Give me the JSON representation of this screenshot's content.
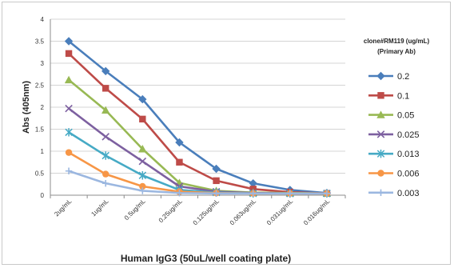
{
  "chart_data": {
    "type": "line",
    "title": "",
    "xlabel": "Human IgG3 (50uL/well coating plate)",
    "ylabel": "Abs (405nm)",
    "categories": [
      "2ug/mL",
      "1ug/mL",
      "0.5ug/mL",
      "0.25ug/mL",
      "0.125ug/mL",
      "0.063ug/mL",
      "0.031ug/mL",
      "0.016ug/mL"
    ],
    "ylim": [
      0,
      4
    ],
    "yticks": [
      "0",
      "0.5",
      "1",
      "1.5",
      "2",
      "2.5",
      "3",
      "3.5",
      "4"
    ],
    "grid": true,
    "legend_title_lines": [
      "clone#RM119 (ug/mL)",
      "(Primary Ab)"
    ],
    "legend_position": "right",
    "series": [
      {
        "name": "0.2",
        "color": "#4a7ebb",
        "marker": "diamond",
        "values": [
          3.5,
          2.82,
          2.18,
          1.2,
          0.6,
          0.27,
          0.12,
          0.05
        ]
      },
      {
        "name": "0.1",
        "color": "#be4b48",
        "marker": "square",
        "values": [
          3.22,
          2.43,
          1.73,
          0.75,
          0.33,
          0.14,
          0.07,
          0.04
        ]
      },
      {
        "name": "0.05",
        "color": "#98b954",
        "marker": "triangle",
        "values": [
          2.62,
          1.93,
          1.05,
          0.28,
          0.1,
          0.06,
          0.05,
          0.04
        ]
      },
      {
        "name": "0.025",
        "color": "#7d60a0",
        "marker": "x",
        "values": [
          1.97,
          1.33,
          0.77,
          0.2,
          0.08,
          0.05,
          0.04,
          0.04
        ]
      },
      {
        "name": "0.013",
        "color": "#46aac5",
        "marker": "star",
        "values": [
          1.43,
          0.9,
          0.45,
          0.12,
          0.06,
          0.04,
          0.04,
          0.04
        ]
      },
      {
        "name": "0.006",
        "color": "#f79646",
        "marker": "circle",
        "values": [
          0.97,
          0.48,
          0.2,
          0.08,
          0.05,
          0.04,
          0.04,
          0.04
        ]
      },
      {
        "name": "0.003",
        "color": "#9bb7e0",
        "marker": "plus",
        "values": [
          0.55,
          0.27,
          0.1,
          0.05,
          0.04,
          0.04,
          0.04,
          0.04
        ]
      }
    ]
  }
}
